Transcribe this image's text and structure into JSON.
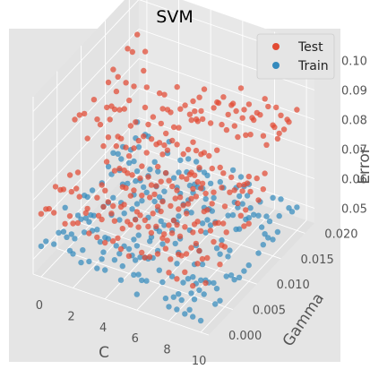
{
  "chart_data": {
    "type": "scatter",
    "projection": "3d",
    "title": "SVM",
    "xlabel": "C",
    "ylabel": "Gamma",
    "zlabel": "Error",
    "xlim": [
      -0.5,
      10.5
    ],
    "ylim": [
      0,
      0.022
    ],
    "zlim": [
      0.045,
      0.105
    ],
    "x_ticks": [
      "0",
      "2",
      "4",
      "6",
      "8",
      "10"
    ],
    "y_ticks": [
      "0.000",
      "0.005",
      "0.010",
      "0.015",
      "0.020"
    ],
    "z_ticks": [
      "0.05",
      "0.06",
      "0.07",
      "0.08",
      "0.09",
      "0.10"
    ],
    "grid": true,
    "legend_position": "top-right",
    "series": [
      {
        "name": "Test",
        "color": "#E24A33"
      },
      {
        "name": "Train",
        "color": "#348ABD"
      }
    ]
  }
}
